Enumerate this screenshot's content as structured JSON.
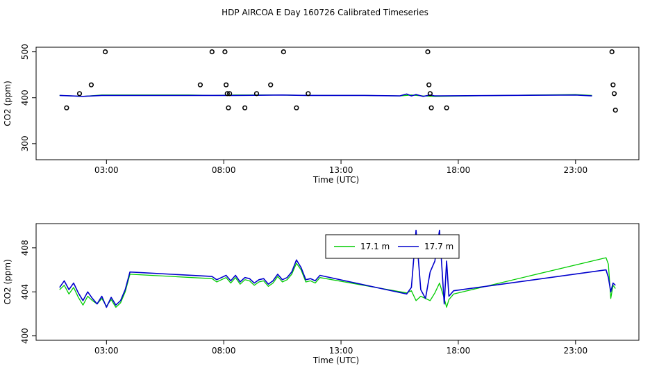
{
  "title": "HDP AIRCOA E  Day 160726  Calibrated Timeseries",
  "colors": {
    "s1": "#00cc00",
    "s2": "#0000cc",
    "axis": "#000000"
  },
  "chart_data": [
    {
      "type": "line",
      "xlabel": "Time (UTC)",
      "ylabel": "CO2 (ppm)",
      "xlim": [
        0.0,
        25.7
      ],
      "ylim": [
        265,
        510
      ],
      "xticks": [
        {
          "v": 3,
          "label": "03:00"
        },
        {
          "v": 8,
          "label": "08:00"
        },
        {
          "v": 13,
          "label": "13:00"
        },
        {
          "v": 18,
          "label": "18:00"
        },
        {
          "v": 23,
          "label": "23:00"
        }
      ],
      "yticks": [
        {
          "v": 300,
          "label": "300"
        },
        {
          "v": 400,
          "label": "400"
        },
        {
          "v": 500,
          "label": "500"
        }
      ],
      "series": [
        {
          "color": "s1",
          "x": [
            1.0,
            2.0,
            2.8,
            6.5,
            7.5,
            8.5,
            10.5,
            11.5,
            14.0,
            15.5,
            16.0,
            16.5,
            17.0,
            20.0,
            23.0,
            23.7
          ],
          "y": [
            405,
            403,
            406,
            406,
            405,
            406,
            406,
            405,
            405,
            404,
            406,
            404,
            403,
            405,
            407,
            405
          ]
        },
        {
          "color": "s2",
          "x": [
            1.0,
            1.5,
            2.0,
            2.8,
            6.5,
            7.5,
            8.5,
            10.5,
            11.5,
            14.0,
            15.5,
            15.8,
            16.0,
            16.2,
            16.5,
            16.8,
            17.0,
            20.0,
            23.0,
            23.7
          ],
          "y": [
            405,
            404,
            403,
            405,
            405,
            405,
            405,
            406,
            405,
            405,
            404,
            408,
            404,
            407,
            403,
            406,
            404,
            405,
            406,
            404
          ]
        }
      ],
      "points": {
        "x": [
          1.3,
          1.85,
          2.35,
          2.95,
          7.0,
          7.5,
          8.05,
          8.1,
          8.15,
          8.2,
          8.25,
          8.9,
          9.4,
          10.0,
          10.55,
          11.1,
          11.6,
          16.7,
          16.75,
          16.8,
          16.85,
          17.5,
          24.55,
          24.6,
          24.65,
          24.7
        ],
        "y": [
          378,
          409,
          428,
          500,
          428,
          500,
          500,
          428,
          409,
          378,
          409,
          378,
          409,
          428,
          500,
          378,
          409,
          500,
          428,
          409,
          378,
          378,
          500,
          428,
          409,
          373
        ]
      }
    },
    {
      "type": "line",
      "xlabel": "Time (UTC)",
      "ylabel": "CO2 (ppm)",
      "xlim": [
        0.0,
        25.7
      ],
      "ylim": [
        399.6,
        410.2
      ],
      "xticks": [
        {
          "v": 3,
          "label": "03:00"
        },
        {
          "v": 8,
          "label": "08:00"
        },
        {
          "v": 13,
          "label": "13:00"
        },
        {
          "v": 18,
          "label": "18:00"
        },
        {
          "v": 23,
          "label": "23:00"
        }
      ],
      "yticks": [
        {
          "v": 400,
          "label": "400"
        },
        {
          "v": 404,
          "label": "404"
        },
        {
          "v": 408,
          "label": "408"
        }
      ],
      "legend": {
        "position": "top-center",
        "entries": [
          {
            "label": "17.1 m",
            "color": "s1"
          },
          {
            "label": "17.7 m",
            "color": "s2"
          }
        ]
      },
      "series": [
        {
          "name": "17.1 m",
          "color": "s1",
          "x": [
            1.0,
            1.2,
            1.4,
            1.6,
            1.8,
            2.0,
            2.2,
            2.4,
            2.6,
            2.8,
            3.0,
            3.2,
            3.4,
            3.6,
            3.8,
            4.0,
            7.5,
            7.7,
            7.9,
            8.1,
            8.3,
            8.5,
            8.7,
            8.9,
            9.1,
            9.3,
            9.5,
            9.7,
            9.9,
            10.1,
            10.3,
            10.5,
            10.7,
            10.9,
            11.1,
            11.3,
            11.5,
            11.7,
            11.9,
            12.1,
            15.8,
            16.0,
            16.2,
            16.4,
            16.6,
            16.8,
            17.0,
            17.2,
            17.4,
            17.5,
            17.6,
            17.8,
            24.3,
            24.4,
            24.5,
            24.6,
            24.7
          ],
          "y": [
            404.2,
            404.6,
            403.8,
            404.4,
            403.5,
            402.8,
            403.6,
            403.2,
            402.9,
            403.4,
            402.7,
            403.3,
            402.6,
            403.0,
            404.0,
            405.6,
            405.2,
            404.9,
            405.1,
            405.3,
            404.8,
            405.3,
            404.7,
            405.1,
            405.0,
            404.6,
            404.9,
            405.0,
            404.5,
            404.8,
            405.4,
            404.9,
            405.1,
            405.6,
            406.6,
            406.0,
            404.9,
            405.0,
            404.8,
            405.3,
            403.9,
            404.1,
            403.2,
            403.6,
            403.4,
            403.2,
            403.9,
            404.8,
            403.4,
            402.6,
            403.3,
            403.8,
            407.1,
            406.5,
            403.4,
            404.6,
            404.3
          ]
        },
        {
          "name": "17.7 m",
          "color": "s2",
          "x": [
            1.0,
            1.2,
            1.4,
            1.6,
            1.8,
            2.0,
            2.2,
            2.4,
            2.6,
            2.8,
            3.0,
            3.2,
            3.4,
            3.6,
            3.8,
            4.0,
            7.5,
            7.7,
            7.9,
            8.1,
            8.3,
            8.5,
            8.7,
            8.9,
            9.1,
            9.3,
            9.5,
            9.7,
            9.9,
            10.1,
            10.3,
            10.5,
            10.7,
            10.9,
            11.1,
            11.3,
            11.5,
            11.7,
            11.9,
            12.1,
            15.8,
            16.0,
            16.2,
            16.4,
            16.6,
            16.8,
            17.0,
            17.2,
            17.4,
            17.5,
            17.6,
            17.8,
            24.3,
            24.4,
            24.5,
            24.6,
            24.7
          ],
          "y": [
            404.4,
            405.0,
            404.2,
            404.8,
            403.9,
            403.2,
            404.0,
            403.4,
            402.9,
            403.6,
            402.6,
            403.5,
            402.8,
            403.2,
            404.2,
            405.8,
            405.4,
            405.1,
            405.3,
            405.5,
            405.0,
            405.5,
            404.9,
            405.3,
            405.2,
            404.8,
            405.1,
            405.2,
            404.7,
            405.0,
            405.6,
            405.1,
            405.3,
            405.8,
            406.9,
            406.2,
            405.1,
            405.2,
            405.0,
            405.5,
            403.8,
            404.4,
            409.6,
            404.2,
            403.4,
            405.8,
            406.8,
            409.6,
            402.9,
            406.8,
            403.6,
            404.1,
            406.0,
            405.3,
            404.0,
            404.8,
            404.6
          ]
        }
      ]
    }
  ]
}
